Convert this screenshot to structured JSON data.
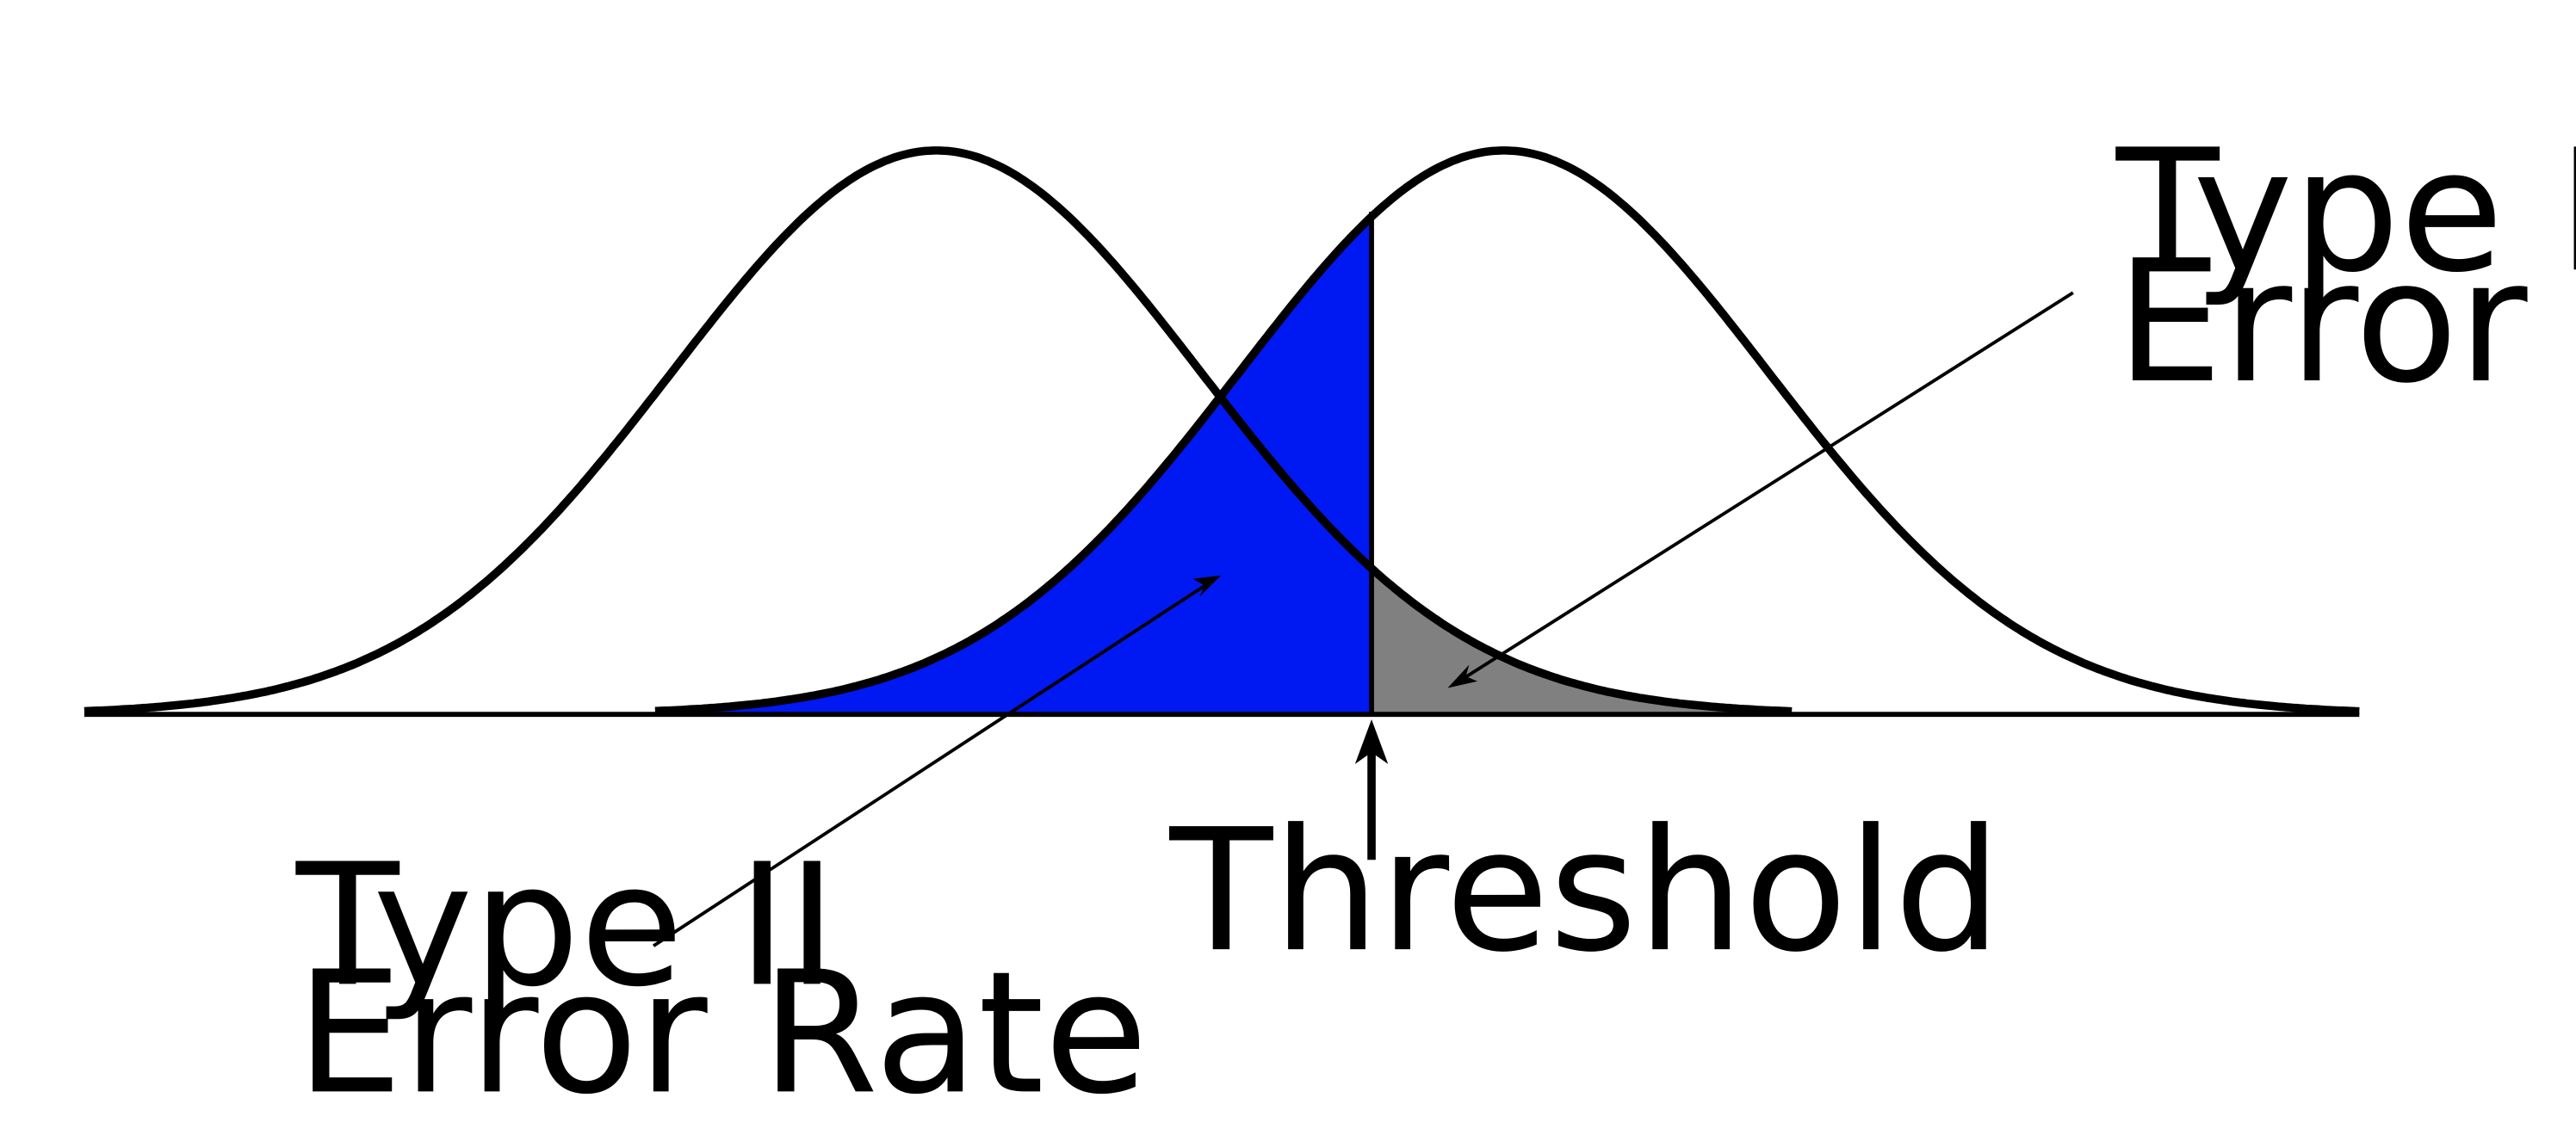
{
  "colors": {
    "type2_fill": "#0019f2",
    "type1_fill": "#808080",
    "stroke": "#000000",
    "background": "#ffffff"
  },
  "labels": {
    "type1": {
      "line1": "Type I",
      "line2": "Error Rate"
    },
    "type2": {
      "line1": "Type II",
      "line2": "Error Rate"
    },
    "threshold": "Threshold"
  }
}
